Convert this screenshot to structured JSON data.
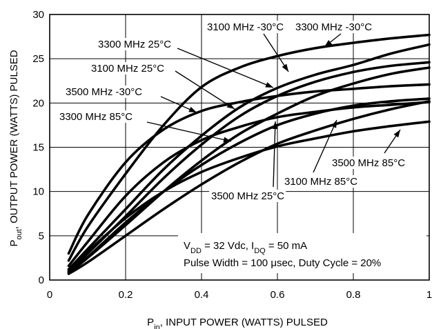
{
  "chart_data": {
    "type": "line",
    "xlabel": "P_in, INPUT POWER (WATTS) PULSED",
    "ylabel": "P_out, OUTPUT POWER (WATTS) PULSED",
    "xlim": [
      0,
      1
    ],
    "ylim": [
      0,
      30
    ],
    "x_ticks": [
      "0",
      "0.2",
      "0.4",
      "0.6",
      "0.8",
      "1"
    ],
    "y_ticks": [
      "0",
      "5",
      "10",
      "15",
      "20",
      "25",
      "30"
    ],
    "grid": true,
    "conditions": {
      "line1": "V_DD = 32 Vdc, I_DQ = 50 mA",
      "line2": "Pulse Width = 100 μsec, Duty Cycle = 20%"
    },
    "series": [
      {
        "name": "3100 MHz -30°C",
        "x": [
          0.05,
          0.1,
          0.2,
          0.3,
          0.4,
          0.5,
          0.6,
          0.7,
          0.8,
          0.9,
          1.0
        ],
        "y": [
          1.2,
          3.5,
          8.0,
          12.5,
          16.3,
          19.5,
          21.7,
          23.2,
          24.3,
          25.6,
          26.6
        ]
      },
      {
        "name": "3300 MHz -30°C",
        "x": [
          0.05,
          0.1,
          0.2,
          0.3,
          0.4,
          0.5,
          0.6,
          0.7,
          0.8,
          0.9,
          1.0
        ],
        "y": [
          2.2,
          6.0,
          12.0,
          17.5,
          21.8,
          24.0,
          25.3,
          26.2,
          26.8,
          27.3,
          27.7
        ]
      },
      {
        "name": "3300 MHz 25°C",
        "x": [
          0.05,
          0.1,
          0.2,
          0.3,
          0.4,
          0.5,
          0.6,
          0.7,
          0.8,
          0.9,
          1.0
        ],
        "y": [
          1.0,
          3.0,
          7.2,
          11.5,
          15.3,
          18.5,
          20.8,
          22.4,
          23.5,
          24.2,
          24.6
        ]
      },
      {
        "name": "3100 MHz 25°C",
        "x": [
          0.05,
          0.1,
          0.2,
          0.3,
          0.4,
          0.5,
          0.6,
          0.7,
          0.8,
          0.9,
          1.0
        ],
        "y": [
          0.8,
          2.5,
          6.2,
          10.0,
          13.5,
          16.5,
          18.8,
          20.8,
          22.2,
          23.3,
          24.0
        ]
      },
      {
        "name": "3500 MHz -30°C",
        "x": [
          0.05,
          0.1,
          0.2,
          0.3,
          0.4,
          0.5,
          0.6,
          0.7,
          0.8,
          0.9,
          1.0
        ],
        "y": [
          3.0,
          7.3,
          13.3,
          17.0,
          19.1,
          20.1,
          20.8,
          21.3,
          21.6,
          21.9,
          22.1
        ]
      },
      {
        "name": "3300 MHz 85°C",
        "x": [
          0.05,
          0.1,
          0.2,
          0.3,
          0.4,
          0.5,
          0.6,
          0.7,
          0.8,
          0.9,
          1.0
        ],
        "y": [
          0.9,
          2.6,
          6.5,
          10.0,
          13.0,
          15.5,
          17.5,
          18.8,
          19.7,
          20.2,
          20.5
        ]
      },
      {
        "name": "3500 MHz 25°C",
        "x": [
          0.05,
          0.1,
          0.2,
          0.3,
          0.4,
          0.5,
          0.6,
          0.7,
          0.8,
          0.9,
          1.0
        ],
        "y": [
          1.6,
          4.3,
          9.5,
          13.3,
          15.8,
          17.3,
          18.4,
          19.0,
          19.5,
          19.8,
          20.1
        ]
      },
      {
        "name": "3100 MHz 85°C",
        "x": [
          0.05,
          0.1,
          0.2,
          0.3,
          0.4,
          0.5,
          0.6,
          0.7,
          0.8,
          0.9,
          1.0
        ],
        "y": [
          0.7,
          2.0,
          5.0,
          8.0,
          10.8,
          13.3,
          15.4,
          16.9,
          18.2,
          19.3,
          20.2
        ]
      },
      {
        "name": "3500 MHz 85°C",
        "x": [
          0.05,
          0.1,
          0.2,
          0.3,
          0.4,
          0.5,
          0.6,
          0.7,
          0.8,
          0.9,
          1.0
        ],
        "y": [
          1.2,
          3.2,
          7.0,
          10.0,
          12.2,
          13.8,
          15.1,
          16.0,
          16.8,
          17.4,
          17.9
        ]
      }
    ]
  }
}
